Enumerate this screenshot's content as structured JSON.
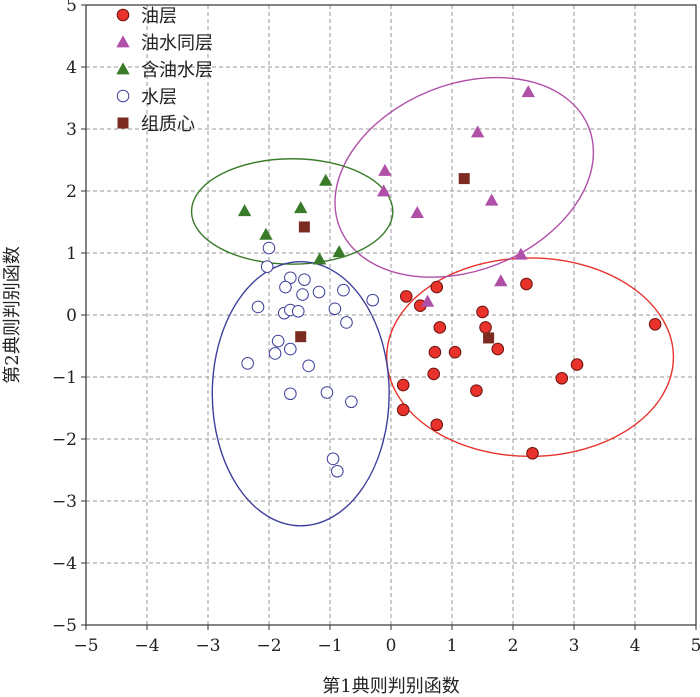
{
  "chart_data": {
    "type": "scatter",
    "xlabel": "第1典则判别函数",
    "ylabel": "第2典则判别函数",
    "xlim": [
      -5,
      5
    ],
    "ylim": [
      -5,
      5
    ],
    "grid": true,
    "legend_position": "top-left",
    "xticks": [
      "−5",
      "−4",
      "−3",
      "−2",
      "−1",
      "0",
      "1",
      "2",
      "3",
      "4",
      "5"
    ],
    "yticks": [
      "5",
      "4",
      "3",
      "2",
      "1",
      "0",
      "−1",
      "−2",
      "−3",
      "−4",
      "−5"
    ],
    "series": [
      {
        "name": "油层",
        "marker": "circle-filled",
        "color": "#e8322b",
        "points": [
          [
            0.25,
            0.3
          ],
          [
            0.75,
            0.45
          ],
          [
            0.48,
            0.15
          ],
          [
            0.8,
            -0.2
          ],
          [
            1.5,
            0.05
          ],
          [
            1.55,
            -0.2
          ],
          [
            2.22,
            0.5
          ],
          [
            4.33,
            -0.15
          ],
          [
            0.72,
            -0.6
          ],
          [
            1.05,
            -0.6
          ],
          [
            1.75,
            -0.55
          ],
          [
            0.7,
            -0.95
          ],
          [
            0.2,
            -1.13
          ],
          [
            1.4,
            -1.22
          ],
          [
            3.05,
            -0.8
          ],
          [
            2.8,
            -1.02
          ],
          [
            0.2,
            -1.53
          ],
          [
            0.75,
            -1.77
          ],
          [
            2.32,
            -2.23
          ]
        ]
      },
      {
        "name": "油水同层",
        "marker": "triangle-filled",
        "color": "#b04fa8",
        "points": [
          [
            2.25,
            3.6
          ],
          [
            1.42,
            2.95
          ],
          [
            -0.1,
            2.33
          ],
          [
            -0.12,
            2.0
          ],
          [
            0.43,
            1.65
          ],
          [
            1.65,
            1.85
          ],
          [
            2.13,
            0.98
          ],
          [
            1.8,
            0.55
          ],
          [
            0.6,
            0.22
          ]
        ]
      },
      {
        "name": "含油水层",
        "marker": "triangle-filled",
        "color": "#3a7b2a",
        "points": [
          [
            -1.07,
            2.17
          ],
          [
            -2.4,
            1.68
          ],
          [
            -1.48,
            1.73
          ],
          [
            -2.05,
            1.3
          ],
          [
            -0.85,
            1.02
          ],
          [
            -1.17,
            0.9
          ]
        ]
      },
      {
        "name": "水层",
        "marker": "circle-open",
        "color": "#3d3f9c",
        "points": [
          [
            -2.0,
            1.08
          ],
          [
            -2.03,
            0.78
          ],
          [
            -1.65,
            0.6
          ],
          [
            -1.42,
            0.57
          ],
          [
            -1.73,
            0.45
          ],
          [
            -0.78,
            0.4
          ],
          [
            -1.18,
            0.37
          ],
          [
            -1.45,
            0.33
          ],
          [
            -0.3,
            0.24
          ],
          [
            -2.18,
            0.13
          ],
          [
            -1.75,
            0.03
          ],
          [
            -1.65,
            0.08
          ],
          [
            -1.52,
            0.06
          ],
          [
            -0.92,
            0.1
          ],
          [
            -0.73,
            -0.12
          ],
          [
            -1.85,
            -0.42
          ],
          [
            -1.9,
            -0.62
          ],
          [
            -1.65,
            -0.55
          ],
          [
            -2.35,
            -0.78
          ],
          [
            -1.35,
            -0.82
          ],
          [
            -1.65,
            -1.27
          ],
          [
            -1.05,
            -1.25
          ],
          [
            -0.65,
            -1.4
          ],
          [
            -0.95,
            -2.32
          ],
          [
            -0.88,
            -2.52
          ]
        ]
      },
      {
        "name": "组质心",
        "marker": "square-filled",
        "color": "#7b2b20",
        "points": [
          [
            1.2,
            2.2
          ],
          [
            -1.42,
            1.42
          ],
          [
            -1.48,
            -0.35
          ],
          [
            1.6,
            -0.37
          ]
        ]
      }
    ],
    "group_ellipses": [
      {
        "group": "油层",
        "color": "#e8322b",
        "center": [
          2.28,
          -0.68
        ],
        "radii": [
          2.35,
          1.6
        ]
      },
      {
        "group": "油水同层",
        "color": "#b04fa8",
        "center": [
          1.2,
          2.22
        ],
        "radii": [
          2.2,
          1.5
        ],
        "rotation_deg": -22
      },
      {
        "group": "含油水层",
        "color": "#3a7b2a",
        "center": [
          -1.62,
          1.67
        ],
        "radii": [
          1.65,
          0.85
        ]
      },
      {
        "group": "水层",
        "color": "#3d3f9c",
        "center": [
          -1.48,
          -1.27
        ],
        "radii": [
          1.45,
          2.13
        ],
        "rotation_deg": 0
      }
    ]
  }
}
